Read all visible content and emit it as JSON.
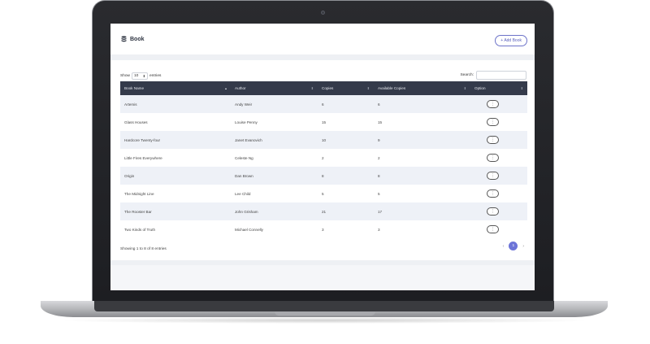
{
  "header": {
    "title": "Book",
    "add_button": "+ Add Book"
  },
  "controls": {
    "show_label": "Show",
    "page_length": "10",
    "entries_label": "entries",
    "search_label": "Search:"
  },
  "table": {
    "columns": [
      "Book Name",
      "Author",
      "Copies",
      "Available Copies",
      "Option"
    ],
    "rows": [
      {
        "name": "Artemis",
        "author": "Andy Weir",
        "copies": "6",
        "available": "6"
      },
      {
        "name": "Glass Houses",
        "author": "Louise Penny",
        "copies": "15",
        "available": "15"
      },
      {
        "name": "Hardcore Twenty-four",
        "author": "Janet Evanovich",
        "copies": "10",
        "available": "9"
      },
      {
        "name": "Little Fires Everywhere",
        "author": "Celeste Ng",
        "copies": "2",
        "available": "2"
      },
      {
        "name": "Origin",
        "author": "Dan Brown",
        "copies": "8",
        "available": "8"
      },
      {
        "name": "The Midnight Line",
        "author": "Lee Child",
        "copies": "5",
        "available": "5"
      },
      {
        "name": "The Rooster Bar",
        "author": "John Grisham",
        "copies": "21",
        "available": "17"
      },
      {
        "name": "Two Kinds of Truth",
        "author": "Michael Connelly",
        "copies": "3",
        "available": "3"
      }
    ],
    "option_glyph": "⋮"
  },
  "footer": {
    "info": "Showing 1 to 8 of 8 entries",
    "prev": "‹",
    "page": "1",
    "next": "›"
  },
  "colors": {
    "accent": "#6c74d8",
    "table_header": "#343a4a"
  }
}
